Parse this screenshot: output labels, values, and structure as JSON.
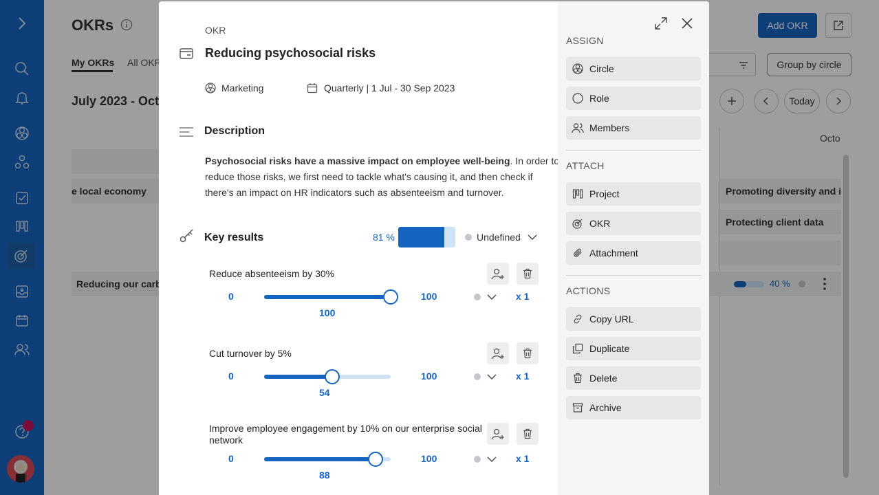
{
  "background": {
    "page_title": "OKRs",
    "tabs": [
      "My OKRs",
      "All OKR"
    ],
    "period_label": "July 2023 - Octo",
    "add_okr_label": "Add OKR",
    "group_by_label": "Group by circle",
    "today_label": "Today",
    "month_label": "Octo",
    "rows": {
      "local_economy": "e local economy",
      "carbon": "Reducing our carbo",
      "diversity": "Promoting diversity and inc",
      "client_data": "Protecting client data"
    },
    "row_progress": "40 %"
  },
  "modal": {
    "type_label": "OKR",
    "title": "Reducing psychosocial risks",
    "circle": "Marketing",
    "period": "Quarterly | 1 Jul - 30 Sep 2023",
    "description_heading": "Description",
    "description_bold": "Psychosocial risks have a massive impact on employee well-being",
    "description_rest_line1": ". In order to",
    "description_line2": "reduce those risks, we first need to tackle what's causing it, and then check if",
    "description_line3": "there's an impact on HR indicators such as absenteeism and turnover.",
    "key_results_heading": "Key results",
    "progress_label": "81 %",
    "progress_value": 0.81,
    "status_label": "Undefined",
    "key_results": [
      {
        "title": "Reduce absenteeism by 30%",
        "title_line2": "",
        "min": "0",
        "max": "100",
        "current": "100",
        "value": 100,
        "weight": "x 1"
      },
      {
        "title": "Cut turnover by 5%",
        "title_line2": "",
        "min": "0",
        "max": "100",
        "current": "54",
        "value": 54,
        "weight": "x 1"
      },
      {
        "title": "Improve employee engagement by 10% on our enterprise social",
        "title_line2": "network",
        "min": "0",
        "max": "100",
        "current": "88",
        "value": 88,
        "weight": "x 1"
      }
    ]
  },
  "sidebar": {
    "assign_heading": "ASSIGN",
    "assign": [
      "Circle",
      "Role",
      "Members"
    ],
    "attach_heading": "ATTACH",
    "attach": [
      "Project",
      "OKR",
      "Attachment"
    ],
    "actions_heading": "ACTIONS",
    "actions": [
      "Copy URL",
      "Duplicate",
      "Delete",
      "Archive"
    ]
  },
  "colors": {
    "nav": "#1565c0",
    "accent": "#1565c0",
    "track": "#cfe3f7"
  }
}
